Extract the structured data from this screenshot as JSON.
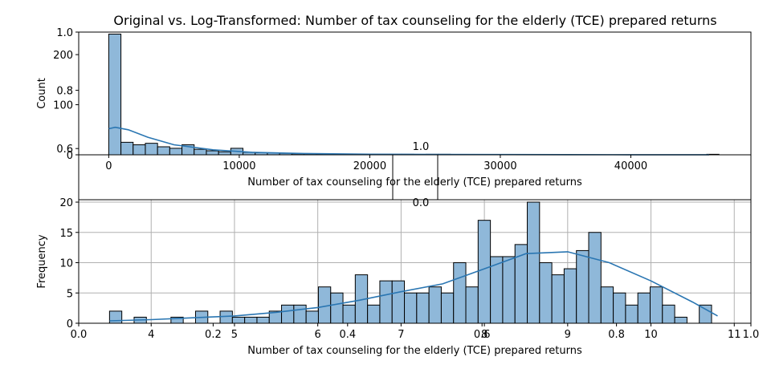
{
  "figure": {
    "title": "Original vs. Log-Transformed: Number of tax counseling for the elderly (TCE) prepared returns"
  },
  "chart_data": [
    {
      "type": "bar",
      "panel": "top",
      "xlabel": "Number of tax counseling for the elderly (TCE) prepared returns",
      "ylabel": "Count",
      "xlim": [
        -2300,
        49200
      ],
      "ylim": [
        0,
        245
      ],
      "xticks": [
        0,
        10000,
        20000,
        30000,
        40000
      ],
      "xtick_labels": [
        "0",
        "10000",
        "20000",
        "30000",
        "40000"
      ],
      "yticks": [
        0,
        100,
        200
      ],
      "ytick_labels": [
        "0",
        "100",
        "200"
      ],
      "grid": false,
      "bin_width": 935,
      "bin_start": 0,
      "values": [
        241,
        25,
        20,
        23,
        16,
        13,
        20,
        11,
        8,
        6,
        13,
        5,
        4,
        4,
        3,
        2,
        2,
        1,
        1,
        1,
        1,
        1,
        1,
        1,
        1,
        0,
        1,
        1,
        0,
        0,
        0,
        0,
        0,
        0,
        0,
        0,
        0,
        0,
        0,
        0,
        0,
        0,
        0,
        0,
        0,
        0,
        0,
        0,
        0,
        1
      ],
      "kde": {
        "x": [
          0,
          500,
          1500,
          3000,
          5000,
          8000,
          11000,
          15000,
          20000,
          25000,
          30000,
          35000,
          40000,
          46000
        ],
        "y": [
          52,
          55,
          50,
          35,
          20,
          10,
          5,
          2.5,
          1.2,
          0.8,
          0.5,
          0.3,
          0.2,
          0.1
        ]
      }
    },
    {
      "type": "bar",
      "panel": "bottom",
      "xlabel": "Number of tax counseling for the elderly (TCE) prepared returns",
      "ylabel": "Frequency",
      "xlim": [
        3.13,
        11.2
      ],
      "ylim": [
        0,
        20.4
      ],
      "xticks": [
        4,
        5,
        6,
        7,
        8,
        9,
        10,
        11
      ],
      "xtick_labels": [
        "4",
        "5",
        "6",
        "7",
        "8",
        "9",
        "10",
        "11"
      ],
      "yticks": [
        0,
        5,
        10,
        15,
        20
      ],
      "ytick_labels": [
        "0",
        "5",
        "10",
        "15",
        "20"
      ],
      "grid": true,
      "bin_width": 0.1475,
      "bin_start": 3.5,
      "values": [
        2,
        0,
        1,
        0,
        0,
        1,
        0,
        2,
        0,
        2,
        1,
        1,
        1,
        2,
        3,
        3,
        2,
        6,
        5,
        3,
        8,
        3,
        7,
        7,
        5,
        5,
        6,
        5,
        10,
        6,
        17,
        11,
        11,
        13,
        20,
        10,
        8,
        9,
        12,
        15,
        6,
        5,
        3,
        5,
        6,
        3,
        1,
        0,
        3
      ],
      "kde": {
        "x": [
          3.5,
          4.0,
          4.5,
          5.0,
          5.5,
          6.0,
          6.5,
          7.0,
          7.5,
          8.0,
          8.5,
          9.0,
          9.5,
          10.0,
          10.5,
          10.8
        ],
        "y": [
          0.4,
          0.6,
          0.9,
          1.2,
          1.8,
          2.6,
          3.8,
          5.2,
          6.5,
          9.0,
          11.5,
          11.8,
          10.0,
          7.0,
          3.5,
          1.2
        ]
      }
    },
    {
      "type": "line",
      "panel": "overlay",
      "note_free": true,
      "xlim": [
        0,
        1
      ],
      "ylim": [
        0,
        1
      ],
      "xticks": [
        0.0,
        0.2,
        0.4,
        0.6,
        0.8,
        1.0
      ],
      "xtick_labels": [
        "0.0",
        "0.2",
        "0.4",
        "0.6",
        "0.8",
        "1.0"
      ],
      "yticks": [
        0.6,
        0.8,
        1.0
      ],
      "ytick_labels": [
        "0.6",
        "0.8",
        "1.0"
      ],
      "grid": false,
      "series": []
    },
    {
      "type": "line",
      "panel": "inset",
      "xticks": [
        0.0
      ],
      "xtick_labels": [
        "0.0"
      ],
      "yticks": [
        1.0
      ],
      "ytick_labels": [
        "1.0"
      ],
      "grid": false,
      "series": []
    }
  ]
}
